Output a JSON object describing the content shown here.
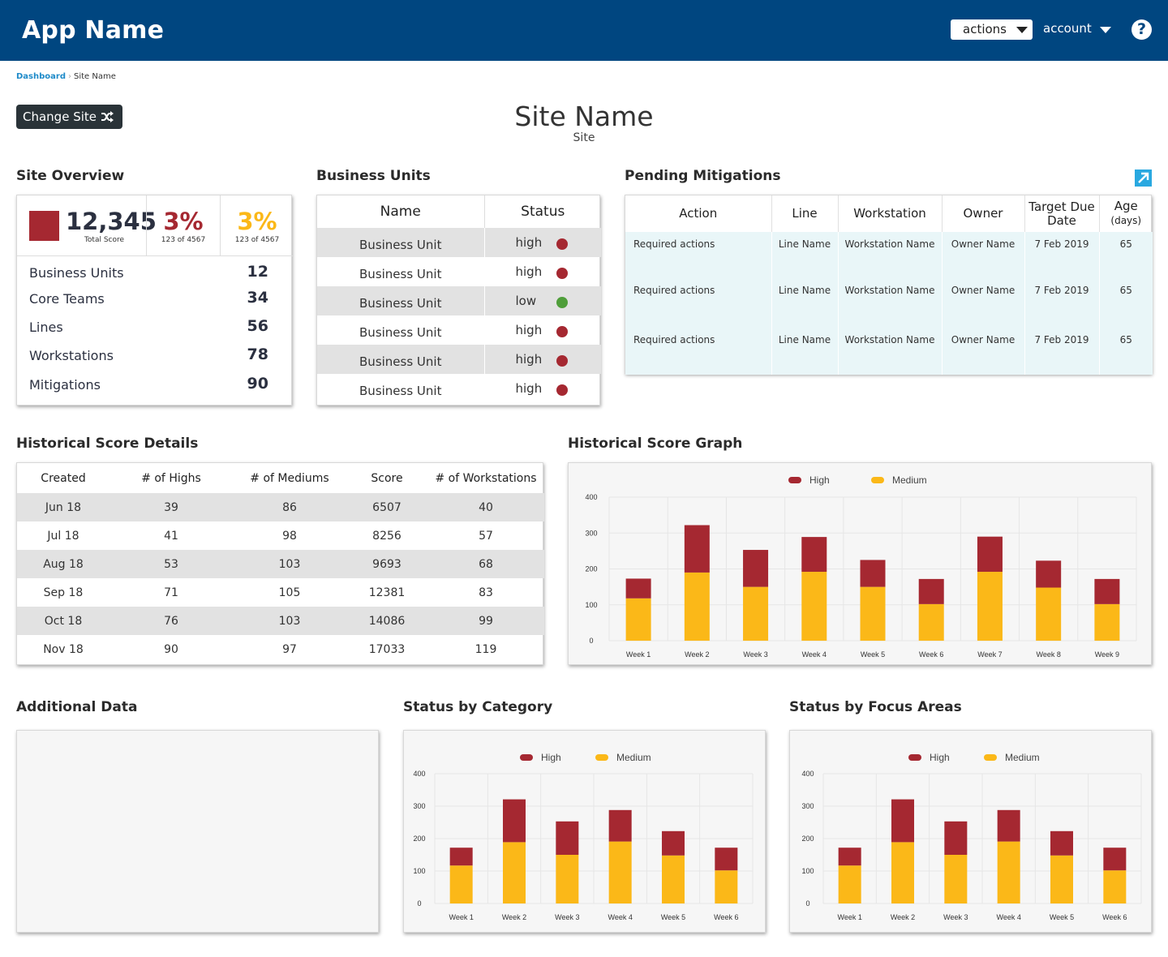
{
  "header": {
    "app_name": "App Name",
    "actions_label": "actions",
    "account_label": "account",
    "help_icon": "question-circle-icon"
  },
  "breadcrumb": {
    "root": "Dashboard",
    "current": "Site Name"
  },
  "change_site": {
    "label": "Change Site",
    "icon": "shuffle-icon"
  },
  "page": {
    "title": "Site Name",
    "subtitle": "Site"
  },
  "colors": {
    "high": "#a52831",
    "medium": "#fbb818",
    "low": "#4f9e3a",
    "navy": "#004680"
  },
  "site_overview": {
    "title": "Site Overview",
    "total_score": "12,345",
    "total_score_label": "Total Score",
    "pct1": {
      "value": "3%",
      "label": "123 of 4567",
      "color": "#a52831"
    },
    "pct2": {
      "value": "3%",
      "label": "123 of 4567",
      "color": "#fbb818"
    },
    "rows": [
      {
        "label": "Business Units",
        "value": "12"
      },
      {
        "label": "Core Teams",
        "value": "34"
      },
      {
        "label": "Lines",
        "value": "56"
      },
      {
        "label": "Workstations",
        "value": "78"
      },
      {
        "label": "Mitigations",
        "value": "90"
      }
    ]
  },
  "business_units": {
    "title": "Business Units",
    "headers": [
      "Name",
      "Status"
    ],
    "rows": [
      {
        "name": "Business Unit",
        "status": "high"
      },
      {
        "name": "Business Unit",
        "status": "high"
      },
      {
        "name": "Business Unit",
        "status": "low"
      },
      {
        "name": "Business Unit",
        "status": "high"
      },
      {
        "name": "Business Unit",
        "status": "high"
      },
      {
        "name": "Business Unit",
        "status": "high"
      }
    ]
  },
  "pending_mitigations": {
    "title": "Pending Mitigations",
    "expand_icon": "external-link-icon",
    "headers": [
      "Action",
      "Line",
      "Workstation",
      "Owner",
      "Target Due Date",
      "Age",
      "(days)"
    ],
    "rows": [
      {
        "action": "Required actions",
        "line": "Line Name",
        "workstation": "Workstation Name",
        "owner": "Owner Name",
        "due": "7 Feb 2019",
        "age": "65"
      },
      {
        "action": "Required actions",
        "line": "Line Name",
        "workstation": "Workstation Name",
        "owner": "Owner Name",
        "due": "7 Feb 2019",
        "age": "65"
      },
      {
        "action": "Required actions",
        "line": "Line Name",
        "workstation": "Workstation Name",
        "owner": "Owner Name",
        "due": "7 Feb 2019",
        "age": "65"
      }
    ]
  },
  "historical_details": {
    "title": "Historical Score Details",
    "headers": [
      "Created",
      "# of Highs",
      "# of Mediums",
      "Score",
      "# of Workstations"
    ],
    "rows": [
      [
        "Jun 18",
        "39",
        "86",
        "6507",
        "40"
      ],
      [
        "Jul 18",
        "41",
        "98",
        "8256",
        "57"
      ],
      [
        "Aug 18",
        "53",
        "103",
        "9693",
        "68"
      ],
      [
        "Sep 18",
        "71",
        "105",
        "12381",
        "83"
      ],
      [
        "Oct 18",
        "76",
        "103",
        "14086",
        "99"
      ],
      [
        "Nov 18",
        "90",
        "97",
        "17033",
        "119"
      ]
    ]
  },
  "historical_graph": {
    "title": "Historical Score Graph"
  },
  "additional_data": {
    "title": "Additional Data"
  },
  "status_by_category": {
    "title": "Status by Category"
  },
  "status_by_focus": {
    "title": "Status by Focus Areas"
  },
  "chart_data": [
    {
      "type": "bar",
      "stacked": true,
      "categories": [
        "Week 1",
        "Week 2",
        "Week 3",
        "Week 4",
        "Week 5",
        "Week 6",
        "Week 7",
        "Week 8",
        "Week 9"
      ],
      "series": [
        {
          "name": "Medium",
          "color": "#fbb818",
          "values": [
            118,
            190,
            150,
            192,
            150,
            102,
            192,
            148,
            102
          ]
        },
        {
          "name": "High",
          "color": "#a52831",
          "values": [
            55,
            132,
            103,
            97,
            75,
            70,
            98,
            75,
            70
          ]
        }
      ],
      "ylim": [
        0,
        400
      ],
      "yticks": [
        "0",
        "100",
        "200",
        "300",
        "400"
      ],
      "legend": "top-center",
      "grid": true
    },
    {
      "type": "bar",
      "stacked": true,
      "categories": [
        "Week 1",
        "Week 2",
        "Week 3",
        "Week 4",
        "Week 5",
        "Week 6"
      ],
      "series": [
        {
          "name": "Medium",
          "color": "#fbb818",
          "values": [
            117,
            189,
            150,
            191,
            148,
            102
          ]
        },
        {
          "name": "High",
          "color": "#a52831",
          "values": [
            55,
            132,
            103,
            97,
            75,
            70
          ]
        }
      ],
      "ylim": [
        0,
        400
      ],
      "yticks": [
        "0",
        "100",
        "200",
        "300",
        "400"
      ],
      "legend": "top-center",
      "grid": true
    },
    {
      "type": "bar",
      "stacked": true,
      "categories": [
        "Week 1",
        "Week 2",
        "Week 3",
        "Week 4",
        "Week 5",
        "Week 6"
      ],
      "series": [
        {
          "name": "Medium",
          "color": "#fbb818",
          "values": [
            117,
            189,
            150,
            191,
            148,
            102
          ]
        },
        {
          "name": "High",
          "color": "#a52831",
          "values": [
            55,
            132,
            103,
            97,
            75,
            70
          ]
        }
      ],
      "ylim": [
        0,
        400
      ],
      "yticks": [
        "0",
        "100",
        "200",
        "300",
        "400"
      ],
      "legend": "top-center",
      "grid": true
    }
  ]
}
